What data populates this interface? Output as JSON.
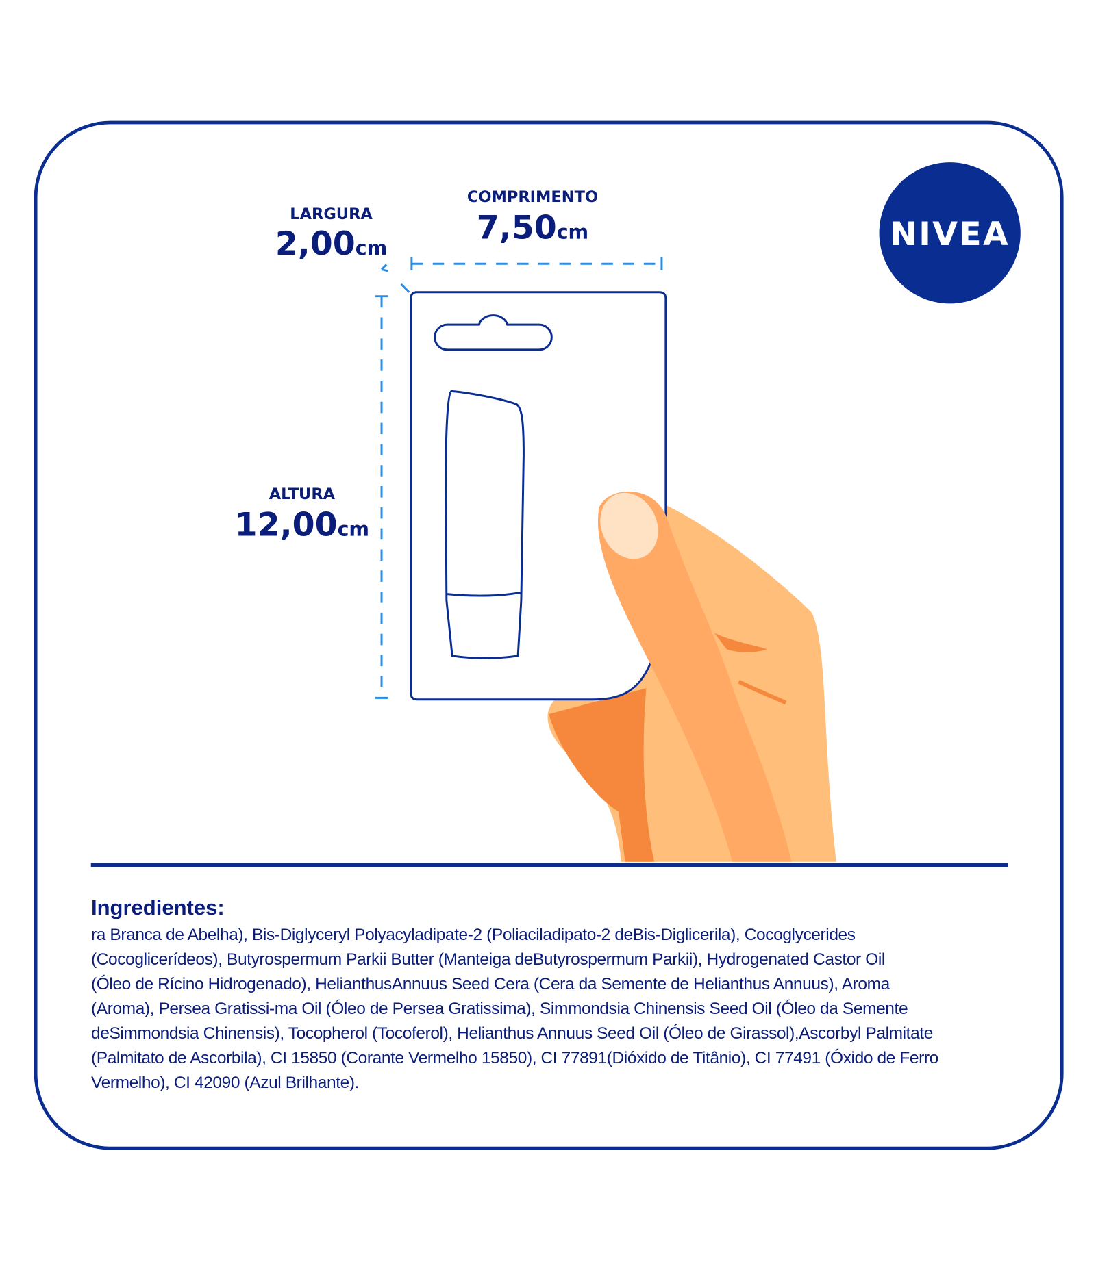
{
  "brand": {
    "logo_text": "NIVEA",
    "color": "#0a2d91"
  },
  "dimensions": {
    "width": {
      "label": "LARGURA",
      "value": "2,00",
      "unit": "cm"
    },
    "length": {
      "label": "COMPRIMENTO",
      "value": "7,50",
      "unit": "cm"
    },
    "height": {
      "label": "ALTURA",
      "value": "12,00",
      "unit": "cm"
    }
  },
  "ingredients": {
    "title": "Ingredientes:",
    "lines": [
      "ra Branca de Abelha), Bis-Diglyceryl Polyacyladipate-2 (Poliaciladipato-2 deBis-Diglicerila), Cocoglycerides",
      "(Cocoglicerídeos), Butyrospermum Parkii Butter (Manteiga deButyrospermum Parkii), Hydrogenated Castor Oil",
      "(Óleo de Rícino Hidrogenado), HelianthusAnnuus Seed Cera (Cera da Semente de Helianthus Annuus), Aroma",
      "(Aroma), Persea Gratissi-ma Oil (Óleo de Persea Gratissima), Simmondsia Chinensis Seed Oil (Óleo da Semente",
      "deSimmondsia Chinensis), Tocopherol (Tocoferol), Helianthus Annuus Seed Oil (Óleo de Girassol),Ascorbyl Palmitate",
      "(Palmitato de Ascorbila), CI 15850 (Corante Vermelho 15850), CI 77891(Dióxido de Titânio), CI 77491 (Óxido de Ferro",
      "Vermelho), CI 42090 (Azul Brilhante)."
    ]
  }
}
